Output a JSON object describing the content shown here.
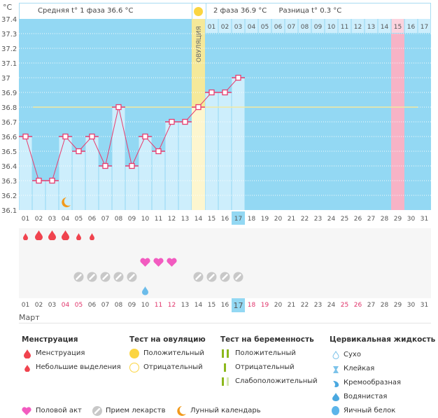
{
  "header": {
    "unit_label": "°C",
    "phase1_text": "Средняя t° 1 фаза 36.6 °C",
    "phase2_text": "2 фаза 36.9 °C",
    "diff_text": "Разница t° 0.3 °C",
    "ovulation_label": "ОВУЛЯЦИЯ"
  },
  "colors": {
    "chart_bg": "#93d8f3",
    "bar_fill": "#cdeefc",
    "line": "#e83c6e",
    "ovulation_column": "#f5e99a",
    "ovulation_lower": "#fdf6cf",
    "period_marker_column": "#f7b3c6",
    "coverline": "#f4e9a0",
    "today_highlight": "#93d8f3",
    "weekend_text": "#e0336a"
  },
  "chart_data": {
    "type": "line",
    "title": "",
    "xlabel": "",
    "ylabel": "°C",
    "ylim": [
      36.1,
      37.4
    ],
    "y_ticks": [
      "37.4",
      "37.3",
      "37.2",
      "37.1",
      "37",
      "36.9",
      "36.8",
      "36.7",
      "36.6",
      "36.5",
      "36.4",
      "36.3",
      "36.2",
      "36.1"
    ],
    "x": [
      "01",
      "02",
      "03",
      "04",
      "05",
      "06",
      "07",
      "08",
      "09",
      "10",
      "11",
      "12",
      "13",
      "14",
      "15",
      "16",
      "17",
      "18",
      "19",
      "20",
      "21",
      "22",
      "23",
      "24",
      "25",
      "26",
      "27",
      "28",
      "29",
      "30",
      "31"
    ],
    "series": [
      {
        "name": "Базальная температура",
        "values": [
          36.6,
          36.3,
          36.3,
          36.6,
          36.5,
          36.6,
          36.4,
          36.8,
          36.4,
          36.6,
          36.5,
          36.7,
          36.7,
          36.8,
          36.9,
          36.9,
          37.0,
          null,
          null,
          null,
          null,
          null,
          null,
          null,
          null,
          null,
          null,
          null,
          null,
          null,
          null
        ]
      }
    ],
    "coverline": 36.8,
    "ovulation_day": "14",
    "highlight_day": "29",
    "today": "17",
    "phase2_day_numbers": [
      "01",
      "02",
      "03",
      "04",
      "05",
      "06",
      "07",
      "08",
      "09",
      "10",
      "11",
      "12",
      "13",
      "14",
      "15",
      "16",
      "17"
    ],
    "phase2_highlight_index": 15,
    "grid": true
  },
  "events": {
    "menstruation": [
      {
        "day": "01",
        "type": "light"
      },
      {
        "day": "02",
        "type": "heavy"
      },
      {
        "day": "03",
        "type": "heavy"
      },
      {
        "day": "04",
        "type": "heavy"
      },
      {
        "day": "05",
        "type": "light"
      },
      {
        "day": "06",
        "type": "light"
      }
    ],
    "intercourse": [
      "10",
      "11",
      "12"
    ],
    "medication": [
      "05",
      "06",
      "07",
      "08",
      "09",
      "14",
      "15",
      "16",
      "17"
    ],
    "cervical_fluid": [
      {
        "day": "10",
        "type": "watery"
      }
    ],
    "moon": [
      "04"
    ]
  },
  "bottom_axis": {
    "days": [
      "01",
      "02",
      "03",
      "04",
      "05",
      "06",
      "07",
      "08",
      "09",
      "10",
      "11",
      "12",
      "13",
      "14",
      "15",
      "16",
      "17",
      "18",
      "19",
      "20",
      "21",
      "22",
      "23",
      "24",
      "25",
      "26",
      "27",
      "28",
      "29",
      "30",
      "31"
    ],
    "weekend_days": [
      "04",
      "05",
      "11",
      "12",
      "18",
      "19",
      "25",
      "26"
    ],
    "today": "17",
    "month": "Март"
  },
  "legend": {
    "menstruation": {
      "title": "Менструация",
      "items": [
        "Менструация",
        "Небольшие выделения"
      ]
    },
    "ovulation_test": {
      "title": "Тест на овуляцию",
      "items": [
        "Положительный",
        "Отрицательный"
      ]
    },
    "pregnancy_test": {
      "title": "Тест на беременность",
      "items": [
        "Положительный",
        "Отрицательный",
        "Слабоположительный"
      ]
    },
    "cervical_fluid": {
      "title": "Цервикальная жидкость",
      "items": [
        "Сухо",
        "Клейкая",
        "Кремообразная",
        "Водянистая",
        "Яичный белок"
      ]
    },
    "other": [
      "Половой акт",
      "Прием лекарств",
      "Лунный календарь"
    ]
  }
}
